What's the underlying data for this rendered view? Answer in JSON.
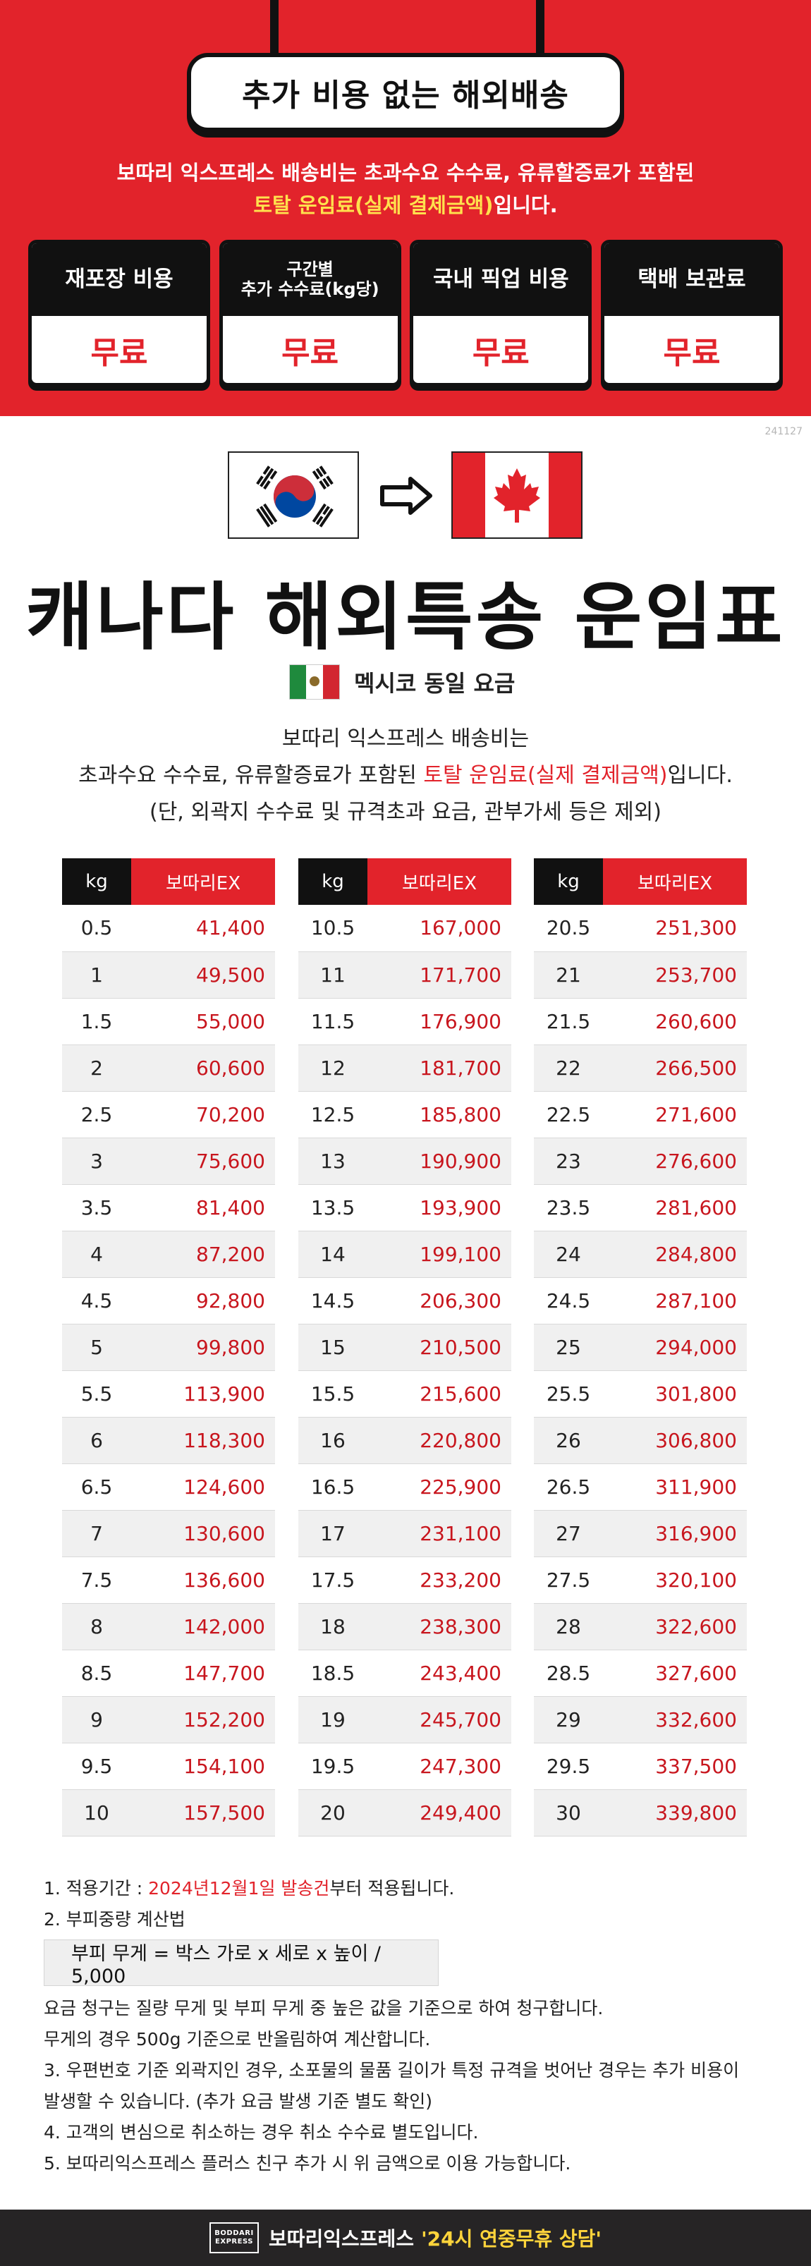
{
  "banner": {
    "title": "추가 비용 없는 해외배송",
    "line1": "보따리 익스프레스 배송비는 초과수요 수수료, 유류할증료가 포함된",
    "line2_highlight": "토탈 운임료(실제 결제금액)",
    "line2_rest": "입니다.",
    "cards": [
      {
        "label": "재포장 비용",
        "value": "무료"
      },
      {
        "label_line1": "구간별",
        "label_line2": "추가 수수료(kg당)",
        "value": "무료"
      },
      {
        "label": "국내 픽업 비용",
        "value": "무료"
      },
      {
        "label": "택배 보관료",
        "value": "무료"
      }
    ]
  },
  "code": "241127",
  "title": "캐나다 해외특송 운임표",
  "mexico": "멕시코 동일 요금",
  "description": {
    "line1": "보따리 익스프레스 배송비는",
    "line2_pre": "초과수요 수수료, 유류할증료가 포함된 ",
    "line2_highlight": "토탈 운임료(실제 결제금액)",
    "line2_post": "입니다.",
    "line3": "(단, 외곽지 수수료 및 규격초과 요금, 관부가세 등은 제외)"
  },
  "table": {
    "col_kg": "kg",
    "col_price": "보따리EX",
    "columns": [
      [
        [
          "0.5",
          "41,400"
        ],
        [
          "1",
          "49,500"
        ],
        [
          "1.5",
          "55,000"
        ],
        [
          "2",
          "60,600"
        ],
        [
          "2.5",
          "70,200"
        ],
        [
          "3",
          "75,600"
        ],
        [
          "3.5",
          "81,400"
        ],
        [
          "4",
          "87,200"
        ],
        [
          "4.5",
          "92,800"
        ],
        [
          "5",
          "99,800"
        ],
        [
          "5.5",
          "113,900"
        ],
        [
          "6",
          "118,300"
        ],
        [
          "6.5",
          "124,600"
        ],
        [
          "7",
          "130,600"
        ],
        [
          "7.5",
          "136,600"
        ],
        [
          "8",
          "142,000"
        ],
        [
          "8.5",
          "147,700"
        ],
        [
          "9",
          "152,200"
        ],
        [
          "9.5",
          "154,100"
        ],
        [
          "10",
          "157,500"
        ]
      ],
      [
        [
          "10.5",
          "167,000"
        ],
        [
          "11",
          "171,700"
        ],
        [
          "11.5",
          "176,900"
        ],
        [
          "12",
          "181,700"
        ],
        [
          "12.5",
          "185,800"
        ],
        [
          "13",
          "190,900"
        ],
        [
          "13.5",
          "193,900"
        ],
        [
          "14",
          "199,100"
        ],
        [
          "14.5",
          "206,300"
        ],
        [
          "15",
          "210,500"
        ],
        [
          "15.5",
          "215,600"
        ],
        [
          "16",
          "220,800"
        ],
        [
          "16.5",
          "225,900"
        ],
        [
          "17",
          "231,100"
        ],
        [
          "17.5",
          "233,200"
        ],
        [
          "18",
          "238,300"
        ],
        [
          "18.5",
          "243,400"
        ],
        [
          "19",
          "245,700"
        ],
        [
          "19.5",
          "247,300"
        ],
        [
          "20",
          "249,400"
        ]
      ],
      [
        [
          "20.5",
          "251,300"
        ],
        [
          "21",
          "253,700"
        ],
        [
          "21.5",
          "260,600"
        ],
        [
          "22",
          "266,500"
        ],
        [
          "22.5",
          "271,600"
        ],
        [
          "23",
          "276,600"
        ],
        [
          "23.5",
          "281,600"
        ],
        [
          "24",
          "284,800"
        ],
        [
          "24.5",
          "287,100"
        ],
        [
          "25",
          "294,000"
        ],
        [
          "25.5",
          "301,800"
        ],
        [
          "26",
          "306,800"
        ],
        [
          "26.5",
          "311,900"
        ],
        [
          "27",
          "316,900"
        ],
        [
          "27.5",
          "320,100"
        ],
        [
          "28",
          "322,600"
        ],
        [
          "28.5",
          "327,600"
        ],
        [
          "29",
          "332,600"
        ],
        [
          "29.5",
          "337,500"
        ],
        [
          "30",
          "339,800"
        ]
      ]
    ]
  },
  "notes": {
    "n1_pre": "1. 적용기간 : ",
    "n1_highlight": "2024년12월1일 발송건",
    "n1_post": "부터 적용됩니다.",
    "n2": "2. 부피중량 계산법",
    "formula": "부피 무게 = 박스 가로 x 세로 x 높이 / 5,000",
    "n2_a": "요금 청구는 질량 무게 및 부피 무게 중 높은 값을 기준으로 하여 청구합니다.",
    "n2_b": "무게의 경우 500g 기준으로 반올림하여 계산합니다.",
    "n3_a": "3. 우편번호 기준 외곽지인 경우, 소포물의 물품 길이가  특정 규격을 벗어난 경우는 추가 비용이",
    "n3_b": "발생할 수 있습니다. (추가 요금 발생 기준 별도 확인)",
    "n4": "4. 고객의 변심으로 취소하는 경우 취소 수수료 별도입니다.",
    "n5": "5. 보따리익스프레스 플러스 친구 추가 시 위 금액으로 이용 가능합니다."
  },
  "footer": {
    "logo_top": "BODDARI",
    "logo_bottom": "EXPRESS",
    "brand": "보따리익스프레스",
    "highlight": "'24시 연중무휴 상담'"
  },
  "colors": {
    "accent": "#e2232b",
    "dark": "#111111",
    "footer": "#262425",
    "highlight_yellow": "#ffe14d"
  }
}
